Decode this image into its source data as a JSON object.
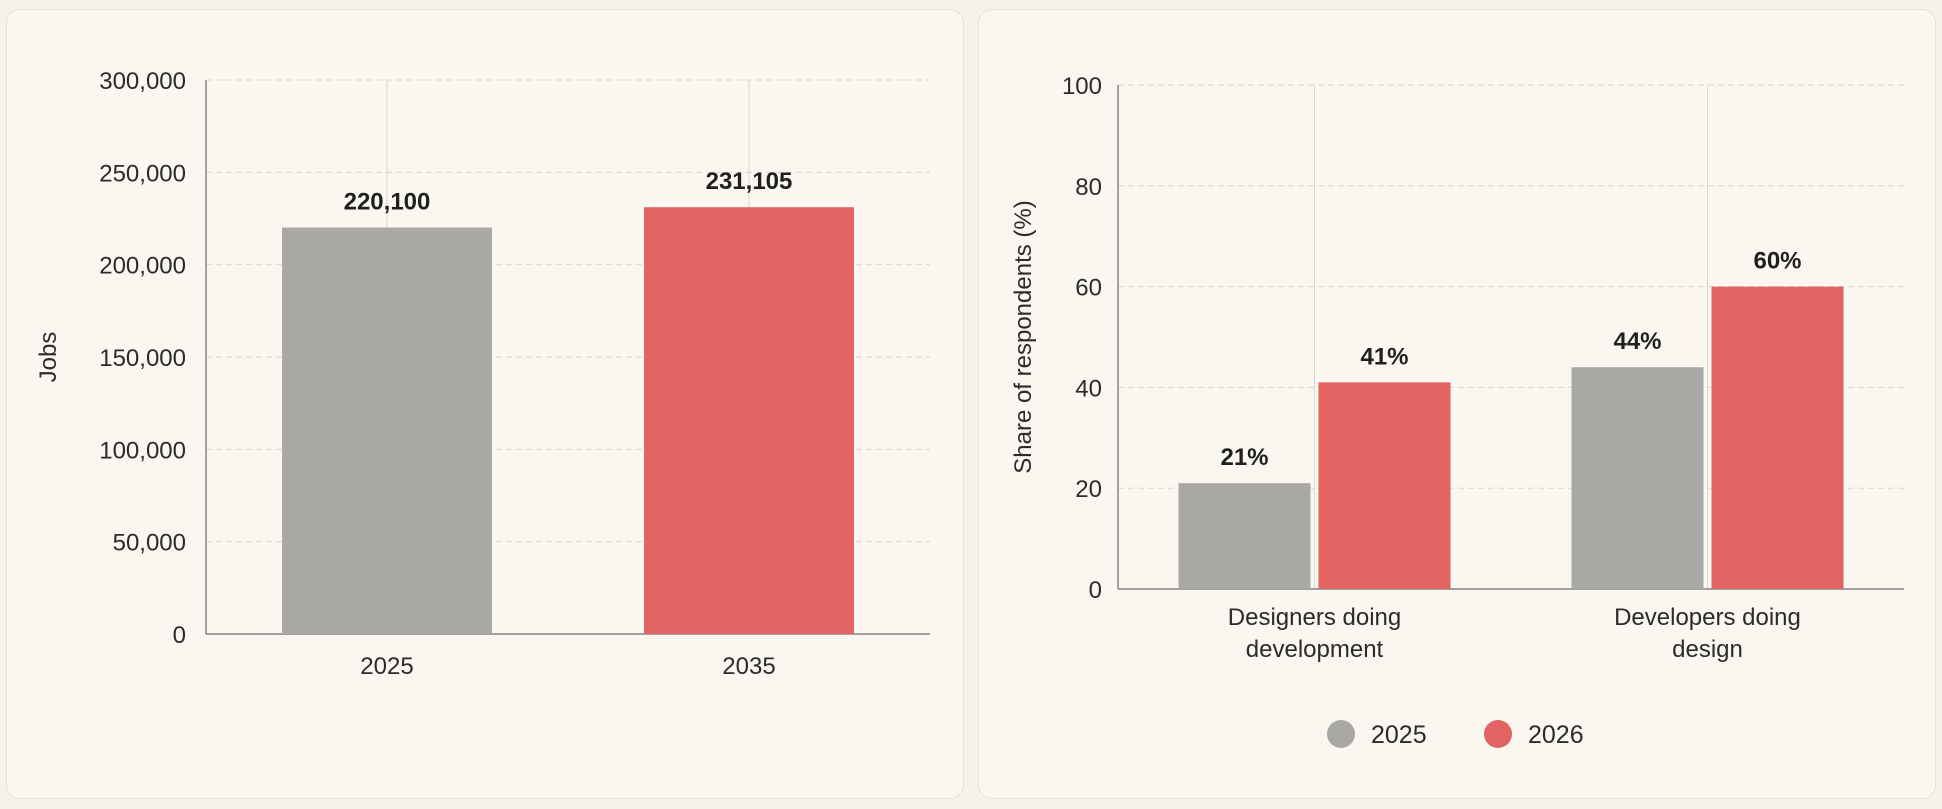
{
  "colors": {
    "gray": "#a9a8a5",
    "red": "#e36363",
    "grid": "#dcd7cd",
    "axis": "#6b6b6b"
  },
  "chart_data": [
    {
      "type": "bar",
      "categories": [
        "2025",
        "2035"
      ],
      "values": [
        220100,
        231105
      ],
      "data_labels": [
        "220,100",
        "231,105"
      ],
      "bar_colors": [
        "#a9a8a5",
        "#e36363"
      ],
      "xlabel": "",
      "ylabel": "Jobs",
      "ylim": [
        0,
        300000
      ],
      "yticks": [
        0,
        50000,
        100000,
        150000,
        200000,
        250000,
        300000
      ],
      "ytick_labels": [
        "0",
        "50,000",
        "100,000",
        "150,000",
        "200,000",
        "250,000",
        "300,000"
      ],
      "grid": true,
      "legend": "none"
    },
    {
      "type": "bar",
      "categories": [
        [
          "Designers doing",
          "development"
        ],
        [
          "Developers doing",
          "design"
        ]
      ],
      "series": [
        {
          "name": "2025",
          "values": [
            21,
            44
          ],
          "labels": [
            "21%",
            "44%"
          ],
          "color": "#a9a8a5"
        },
        {
          "name": "2026",
          "values": [
            41,
            60
          ],
          "labels": [
            "41%",
            "60%"
          ],
          "color": "#e36363"
        }
      ],
      "xlabel": "",
      "ylabel": "Share of respondents (%)",
      "ylim": [
        0,
        100
      ],
      "yticks": [
        0,
        20,
        40,
        60,
        80,
        100
      ],
      "ytick_labels": [
        "0",
        "20",
        "40",
        "60",
        "80",
        "100"
      ],
      "grid": true,
      "legend": "bottom-center"
    }
  ]
}
